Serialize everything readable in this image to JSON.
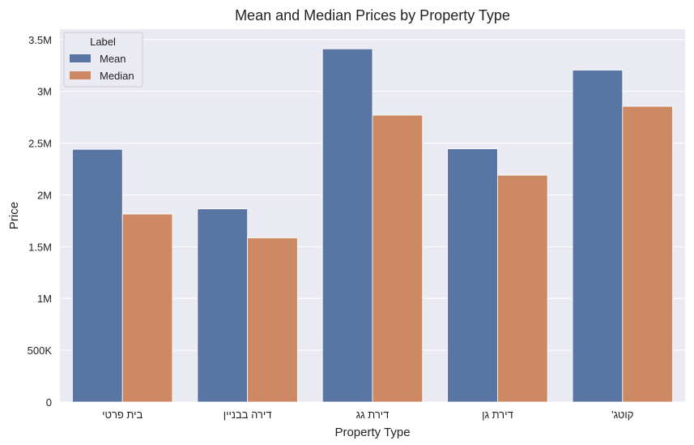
{
  "chart_data": {
    "type": "bar",
    "title": "Mean and Median Prices by Property Type",
    "xlabel": "Property Type",
    "ylabel": "Price",
    "categories": [
      "בית פרטי",
      "דירה בבניין",
      "דירת גג",
      "דירת גן",
      "קוטג'"
    ],
    "series": [
      {
        "name": "Mean",
        "color": "#5875a4",
        "values": [
          2440000,
          1865000,
          3410000,
          2445000,
          3205000
        ]
      },
      {
        "name": "Median",
        "color": "#cc8963",
        "values": [
          1815000,
          1585000,
          2770000,
          2190000,
          2855000
        ]
      }
    ],
    "ylim": [
      0,
      3600000
    ],
    "yticks": [
      0,
      500000,
      1000000,
      1500000,
      2000000,
      2500000,
      3000000,
      3500000
    ],
    "ytick_labels": [
      "0",
      "500K",
      "1M",
      "1.5M",
      "2M",
      "2.5M",
      "3M",
      "3.5M"
    ],
    "legend": {
      "title": "Label",
      "position": "top-left"
    },
    "grid": true,
    "plot_background": "#eaeaf2",
    "grid_color": "#ffffff"
  }
}
